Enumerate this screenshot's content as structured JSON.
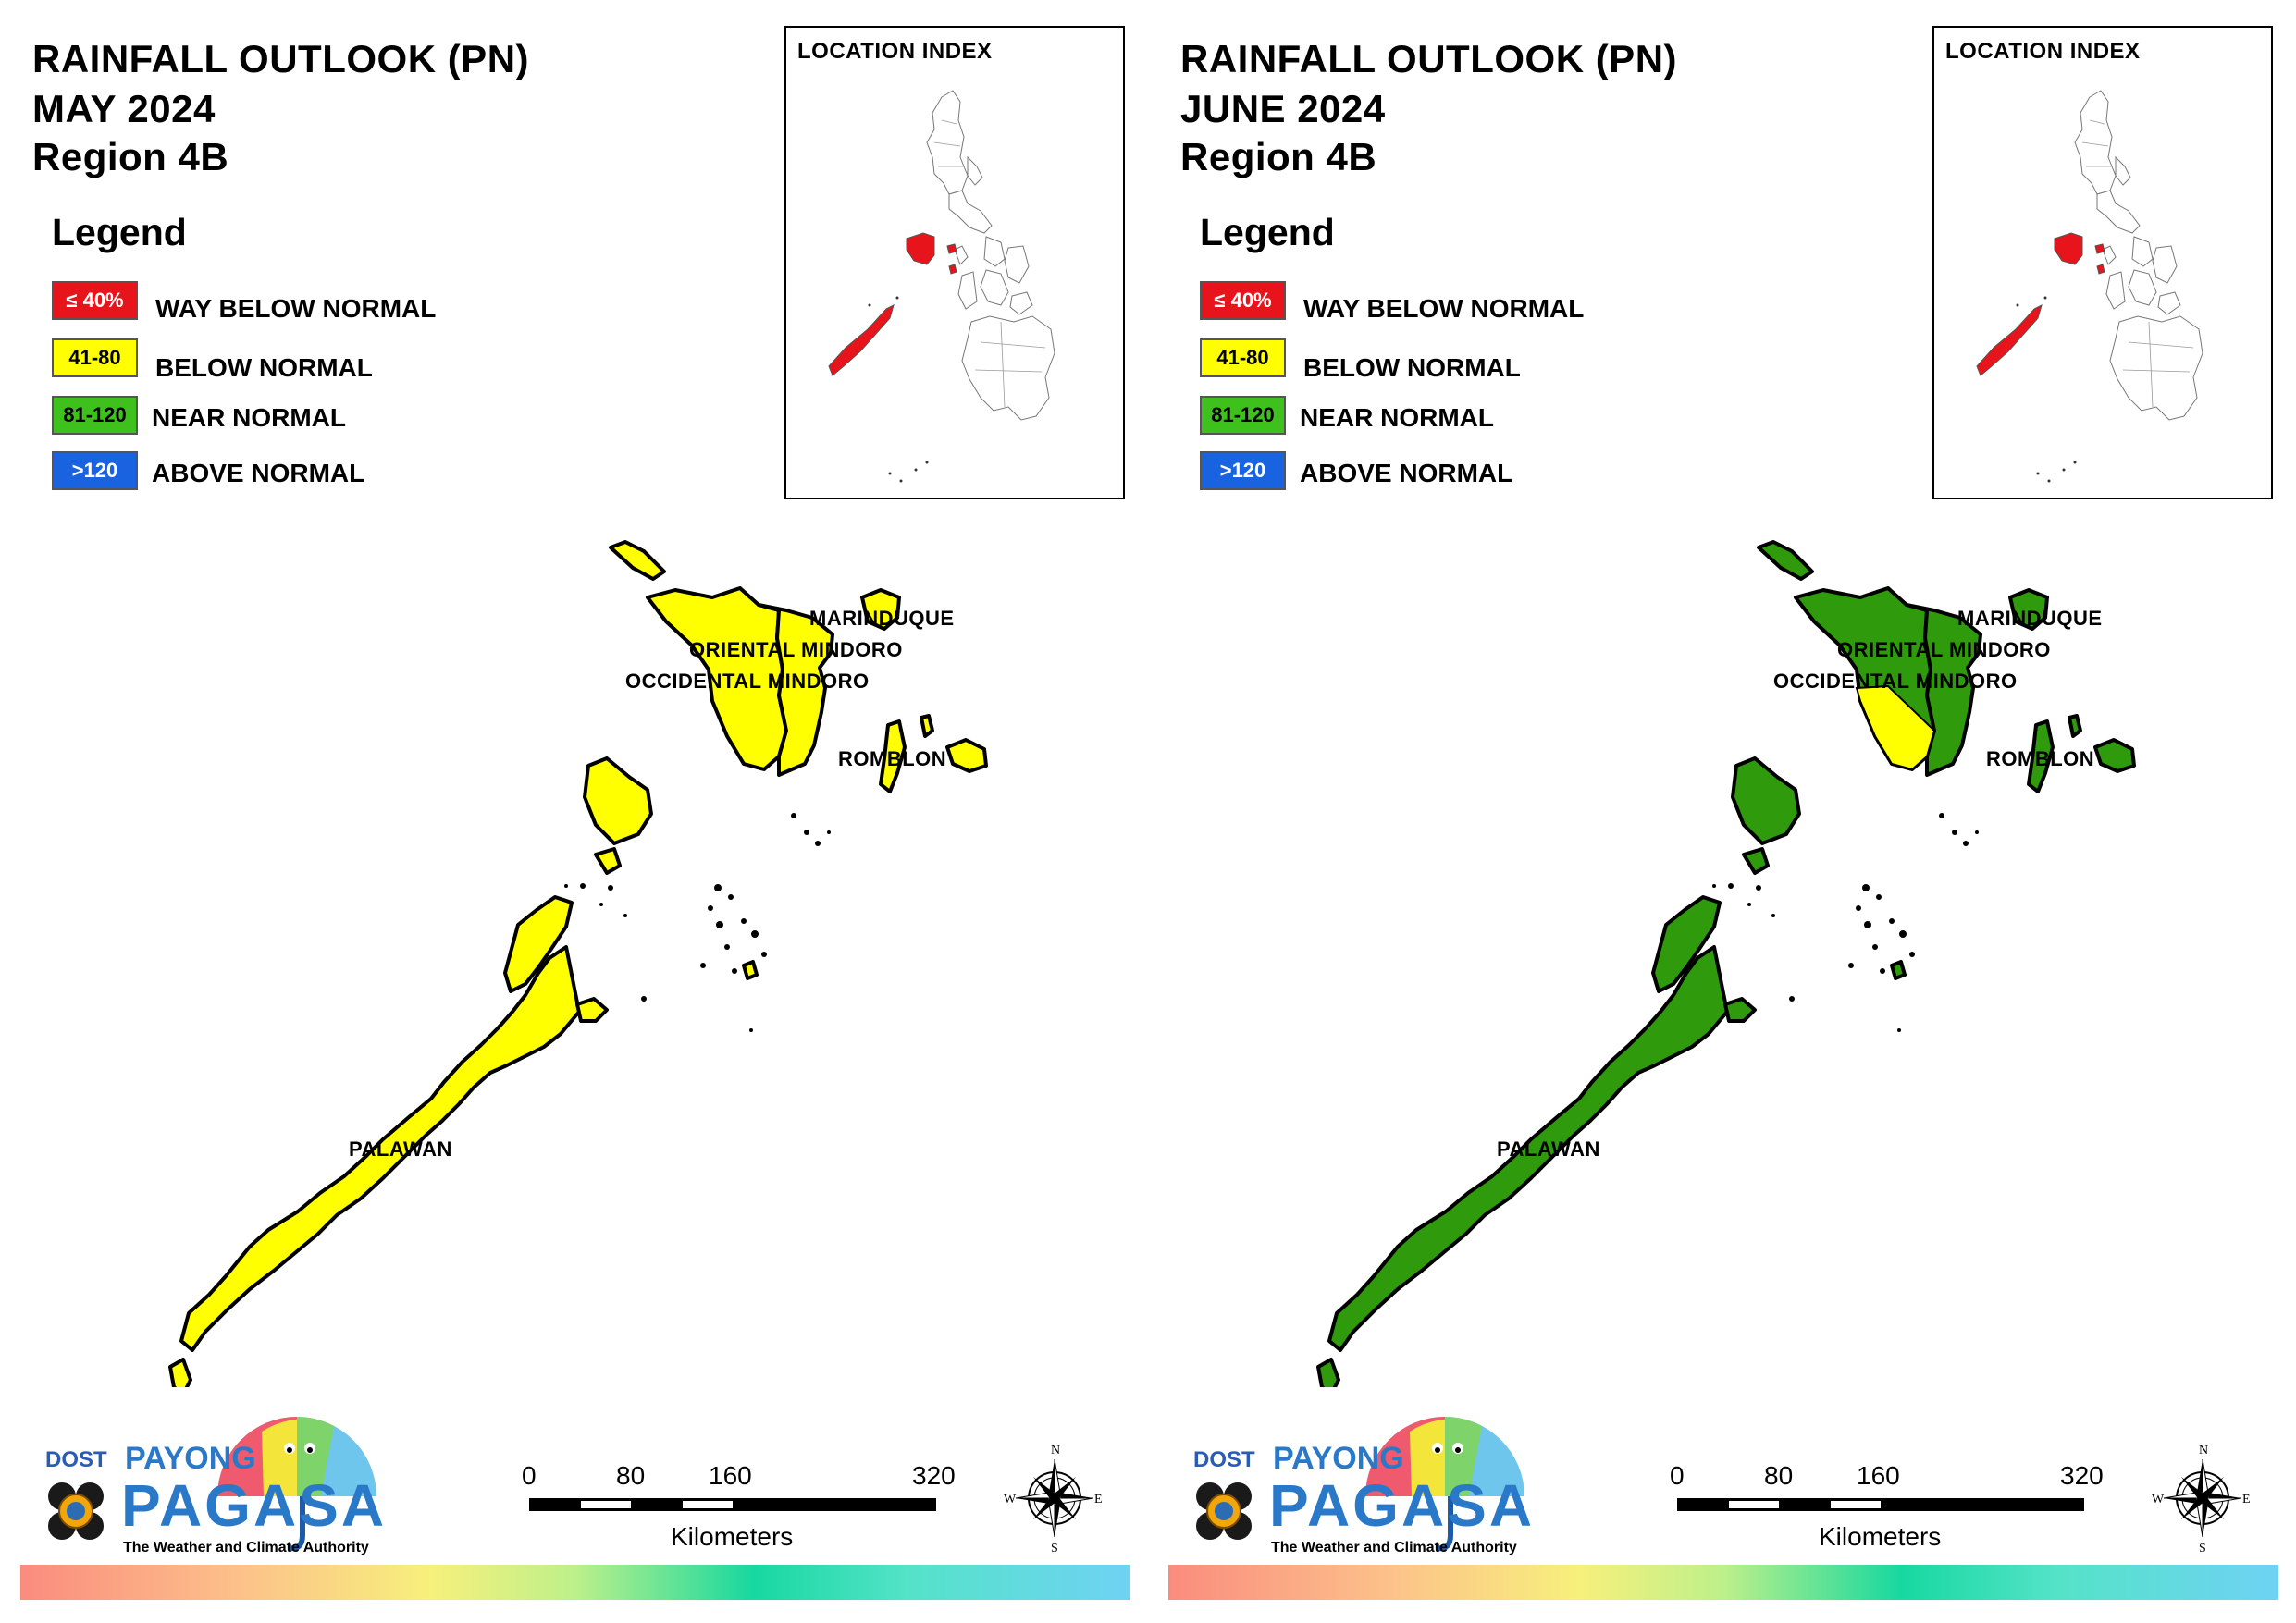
{
  "panels": [
    {
      "title": "RAINFALL OUTLOOK (PN)",
      "month": "MAY 2024",
      "region": "Region 4B",
      "fill_color": "#ffff00"
    },
    {
      "title": "RAINFALL OUTLOOK (PN)",
      "month": "JUNE 2024",
      "region": "Region 4B",
      "fill_color": "#2e9a0c"
    }
  ],
  "legend": {
    "title": "Legend",
    "items": [
      {
        "range": "≤ 40%",
        "label": "WAY BELOW NORMAL",
        "color": "#e8141b",
        "text_color": "#ffffff"
      },
      {
        "range": "41-80",
        "label": "BELOW NORMAL",
        "color": "#ffff00",
        "text_color": "#000000"
      },
      {
        "range": "81-120",
        "label": "NEAR NORMAL",
        "color": "#3ec11c",
        "text_color": "#000000"
      },
      {
        "range": ">120",
        "label": "ABOVE NORMAL",
        "color": "#1a63e0",
        "text_color": "#ffffff"
      }
    ]
  },
  "location_index": {
    "title": "LOCATION INDEX",
    "highlight_color": "#e8141b"
  },
  "provinces": {
    "marinduque": "MARINDUQUE",
    "oriental_mindoro": "ORIENTAL MINDORO",
    "occidental_mindoro": "OCCIDENTAL MINDORO",
    "romblon": "ROMBLON",
    "palawan": "PALAWAN"
  },
  "scale": {
    "ticks": [
      "0",
      "80",
      "160",
      "320"
    ],
    "units": "Kilometers"
  },
  "compass": {
    "n": "N",
    "s": "S",
    "e": "E",
    "w": "W"
  },
  "logo": {
    "dost": "DOST",
    "payong": "PAYONG",
    "pagasa": "PAGASA",
    "tagline": "The Weather and Climate Authority"
  },
  "colors": {
    "june_mindoro_yellow": "#ffff00"
  }
}
